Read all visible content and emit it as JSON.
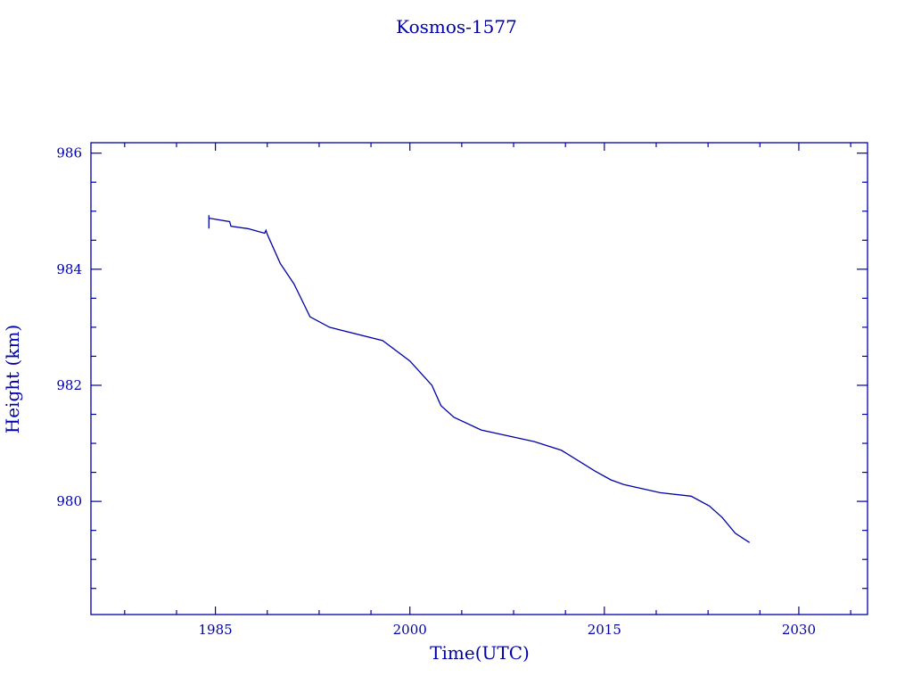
{
  "chart_data": {
    "type": "line",
    "title": "Kosmos-1577",
    "xlabel": "Time(UTC)",
    "ylabel": "Height (km)",
    "xlim": [
      1975.4,
      2035.3
    ],
    "ylim": [
      978.05,
      986.18
    ],
    "xticks": [
      1985,
      2000,
      2015,
      2030
    ],
    "xtick_labels": [
      "1985",
      "2000",
      "2015",
      "2030"
    ],
    "x_minor_ticks": [
      1978,
      1982,
      1989,
      1993,
      1997,
      2004,
      2008,
      2012,
      2019,
      2023,
      2027,
      2034
    ],
    "yticks": [
      980,
      982,
      984,
      986
    ],
    "ytick_labels": [
      "980",
      "982",
      "984",
      "986"
    ],
    "y_minor_step": 0.5,
    "grid": false,
    "color": "#0000a8",
    "series": [
      {
        "name": "Height",
        "x": [
          1984.5,
          1984.5,
          1984.5,
          1986.1,
          1986.2,
          1987.5,
          1988.8,
          1988.9,
          1989.0,
          1990.0,
          1991.05,
          1991.6,
          1992.3,
          1993.8,
          1997.9,
          2000.0,
          2001.7,
          2002.4,
          2003.4,
          2005.5,
          2009.6,
          2011.7,
          2014.3,
          2015.5,
          2016.5,
          2019.3,
          2021.7,
          2023.1,
          2024.1,
          2025.1,
          2026.2
        ],
        "y": [
          984.7,
          984.93,
          984.88,
          984.82,
          984.74,
          984.7,
          984.62,
          984.67,
          984.6,
          984.1,
          983.75,
          983.5,
          983.18,
          983.0,
          982.77,
          982.42,
          982.0,
          981.65,
          981.45,
          981.23,
          981.03,
          980.88,
          980.52,
          980.37,
          980.29,
          980.15,
          980.09,
          979.92,
          979.72,
          979.45,
          979.29
        ]
      }
    ]
  }
}
